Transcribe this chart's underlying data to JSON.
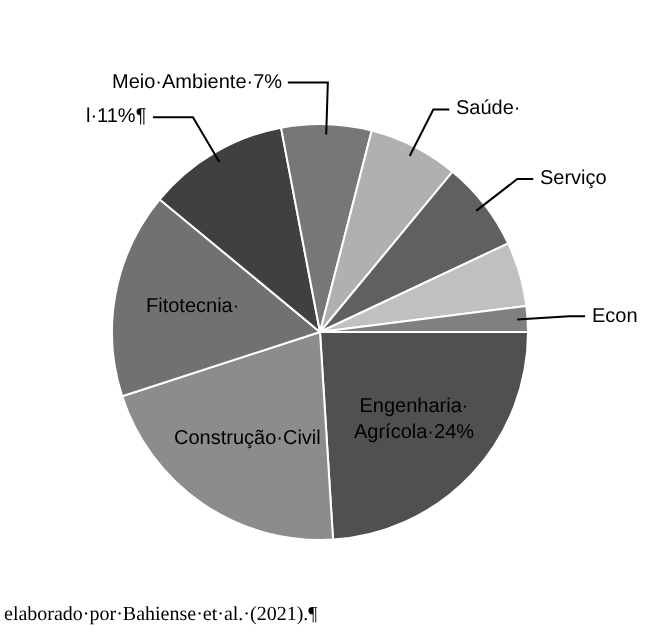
{
  "chart_data": {
    "type": "pie",
    "categories": [
      "Engenharia·\nAgrícola·24%",
      "Construção·Civil",
      "Fitotecnia·",
      "l·11%¶",
      "Meio·Ambiente·7%",
      "Saúde·",
      "Serviço",
      null,
      "Econ"
    ],
    "values": [
      24,
      21,
      16,
      11,
      7,
      7,
      7,
      5,
      2
    ],
    "colors": [
      "#505050",
      "#8c8c8c",
      "#717171",
      "#404040",
      "#777777",
      "#b0b0b0",
      "#606060",
      "#c0c0c0",
      "#808080"
    ],
    "annotations": [
      "elaborado·por·Bahiense·et·al.·(2021).¶"
    ]
  }
}
